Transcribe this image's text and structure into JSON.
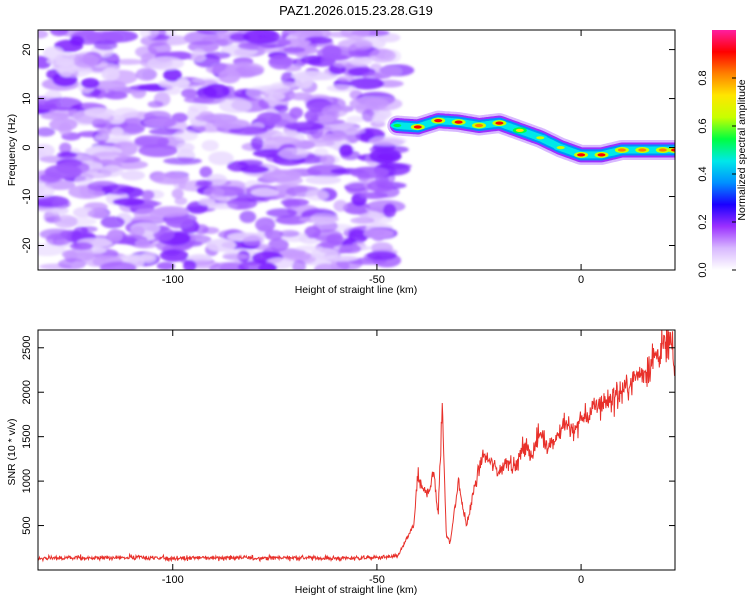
{
  "title": "PAZ1.2026.015.23.28.G19",
  "colors": {
    "snr_line": "#e8302a",
    "colormap": [
      "#ffffff",
      "#d8b8ff",
      "#9b30ff",
      "#1a00ff",
      "#0090ff",
      "#00e8e8",
      "#00ff40",
      "#c8ff00",
      "#ffe600",
      "#ff8000",
      "#ff0000",
      "#ff1ea0"
    ]
  },
  "chart_data": [
    {
      "type": "heatmap",
      "name": "spectrogram",
      "title": "PAZ1.2026.015.23.28.G19",
      "xlabel": "Height of straight line (km)",
      "ylabel": "Frequency (Hz)",
      "xlim": [
        -133,
        23
      ],
      "ylim": [
        -25,
        24
      ],
      "xticks": [
        -100,
        -50,
        0
      ],
      "yticks": [
        -20,
        -10,
        0,
        10,
        20
      ],
      "noise_region_x": [
        -133,
        -45
      ],
      "signal_ridge": {
        "x": [
          -45,
          -40,
          -35,
          -30,
          -25,
          -20,
          -15,
          -10,
          -5,
          0,
          5,
          10,
          15,
          20,
          23
        ],
        "frequency": [
          4.5,
          4.2,
          5.5,
          5.2,
          4.5,
          5.0,
          3.5,
          2.0,
          0.0,
          -1.5,
          -1.5,
          -0.5,
          -0.5,
          -0.5,
          -0.5
        ],
        "peak_amplitude": [
          0.55,
          0.9,
          0.9,
          0.9,
          0.85,
          0.9,
          0.7,
          0.6,
          0.6,
          0.9,
          0.9,
          0.85,
          0.8,
          0.85,
          0.9
        ]
      },
      "colorbar": {
        "label": "Normalized spectral amplitude",
        "range": [
          0.0,
          1.0
        ],
        "ticks": [
          0.0,
          0.2,
          0.4,
          0.6,
          0.8
        ]
      }
    },
    {
      "type": "line",
      "name": "snr",
      "xlabel": "Height of straight line (km)",
      "ylabel": "SNR (10 * v/v)",
      "xlim": [
        -133,
        23
      ],
      "ylim": [
        0,
        2700
      ],
      "xticks": [
        -100,
        -50,
        0
      ],
      "yticks": [
        500,
        1000,
        1500,
        2000,
        2500
      ],
      "series": [
        {
          "name": "SNR",
          "x": [
            -133,
            -120,
            -110,
            -100,
            -90,
            -80,
            -70,
            -60,
            -50,
            -45,
            -43,
            -41,
            -40,
            -39,
            -38,
            -37,
            -36,
            -35,
            -34,
            -33,
            -32,
            -31,
            -30,
            -29,
            -28,
            -26,
            -24,
            -22,
            -20,
            -18,
            -16,
            -14,
            -12,
            -10,
            -8,
            -6,
            -4,
            -2,
            0,
            2,
            4,
            6,
            8,
            10,
            12,
            14,
            16,
            18,
            20,
            22,
            23
          ],
          "values": [
            130,
            135,
            140,
            130,
            140,
            135,
            140,
            130,
            140,
            150,
            320,
            500,
            1050,
            900,
            880,
            930,
            1100,
            600,
            1850,
            400,
            300,
            700,
            1000,
            700,
            500,
            950,
            1300,
            1200,
            1100,
            1250,
            1150,
            1400,
            1300,
            1550,
            1400,
            1500,
            1650,
            1550,
            1700,
            1750,
            1850,
            1900,
            1950,
            2000,
            2100,
            2200,
            2250,
            2400,
            2500,
            2550,
            2200
          ]
        }
      ]
    }
  ]
}
